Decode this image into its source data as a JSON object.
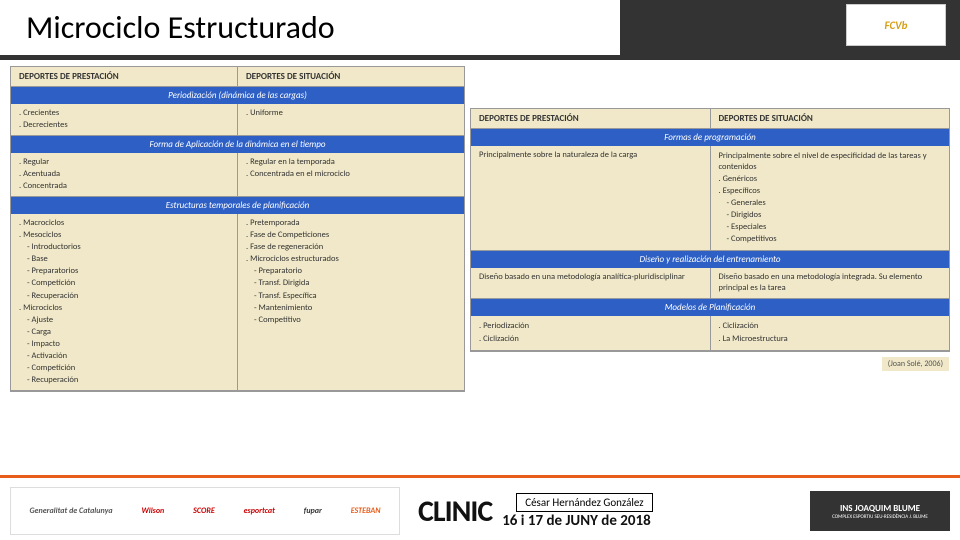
{
  "title": "Microciclo Estructurado",
  "logo": "FCVb",
  "left_table": {
    "h1": "DEPORTES DE PRESTACIÓN",
    "h2": "DEPORTES DE SITUACIÓN",
    "s1": "Periodización (dinámica de las cargas)",
    "r1c1a": ". Crecientes",
    "r1c1b": ". Decrecientes",
    "r1c2a": ". Uniforme",
    "s2": "Forma de Aplicación de la dinámica en el tiempo",
    "r2c1a": ". Regular",
    "r2c1b": ". Acentuada",
    "r2c1c": ". Concentrada",
    "r2c2a": ". Regular en la temporada",
    "r2c2b": ". Concentrada en el microciclo",
    "s3": "Estructuras temporales de planificación",
    "r3c1a": ". Macrociclos",
    "r3c1b": ". Mesociclos",
    "r3c1s1": "Introductorios",
    "r3c1s2": "Base",
    "r3c1s3": "Preparatorios",
    "r3c1s4": "Competición",
    "r3c1s5": "Recuperación",
    "r3c1c": ". Microciclos",
    "r3c1m1": "Ajuste",
    "r3c1m2": "Carga",
    "r3c1m3": "Impacto",
    "r3c1m4": "Activación",
    "r3c1m5": "Competición",
    "r3c1m6": "Recuperación",
    "r3c2a": ". Pretemporada",
    "r3c2b": ". Fase de Competiciones",
    "r3c2c": ". Fase de regeneración",
    "r3c2d": ". Microciclos estructurados",
    "r3c2s1": "Preparatorio",
    "r3c2s2": "Transf. Dirigida",
    "r3c2s3": "Transf. Específica",
    "r3c2s4": "Mantenimiento",
    "r3c2s5": "Competitivo"
  },
  "right_table": {
    "h1": "DEPORTES DE PRESTACIÓN",
    "h2": "DEPORTES DE SITUACIÓN",
    "s1": "Formas de programación",
    "r1c1": "Principalmente sobre la naturaleza de la carga",
    "r1c2a": "Principalmente sobre el nivel de especificidad de las tareas y contenidos",
    "r1c2b": ". Genéricos",
    "r1c2c": ". Específicos",
    "r1c2s1": "Generales",
    "r1c2s2": "Dirigidos",
    "r1c2s3": "Especiales",
    "r1c2s4": "Competitivos",
    "s2": "Diseño y realización del entrenamiento",
    "r2c1": "Diseño basado en una metodología analítica-pluridisciplinar",
    "r2c2": "Diseño basado en una metodología integrada. Su elemento principal es la tarea",
    "s3": "Modelos de Planificación",
    "r3c1a": ". Periodización",
    "r3c1b": ". Ciclización",
    "r3c2a": ". Ciclización",
    "r3c2b": ". La Microestructura",
    "cite": "(Joan Solé, 2006)"
  },
  "footer": {
    "sp1": "Generalitat de Catalunya",
    "sp2": "esportcat",
    "sp3": "Wilson",
    "sp4": "SCORE",
    "sp5": "fupar",
    "sp6": "ESTEBAN",
    "clinic": "CLINIC",
    "author": "César Hernández González",
    "date": "16 i 17 de JUNY de 2018",
    "blume": "INS JOAQUIM BLUME",
    "blume_sub": "COMPLEX ESPORTIU SEU-RESIDÈNCIA J. BLUME"
  }
}
